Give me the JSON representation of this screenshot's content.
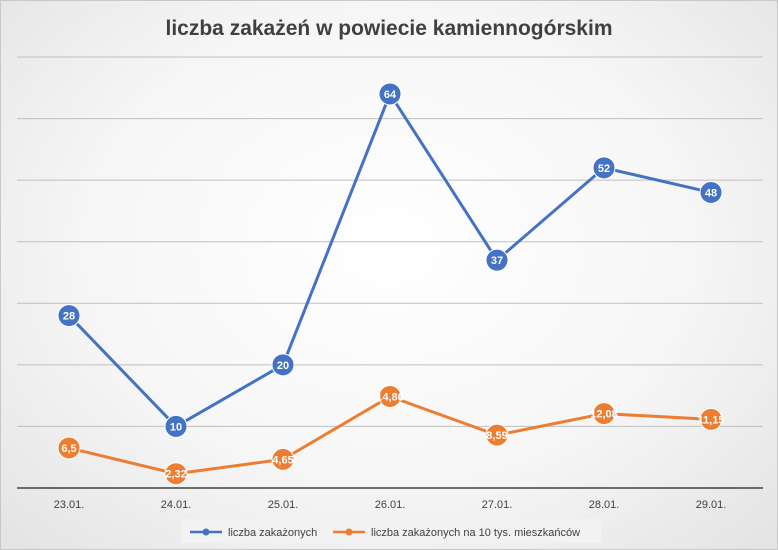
{
  "chart_data": {
    "type": "line",
    "title": "liczba zakażeń w powiecie kamiennogórskim",
    "categories": [
      "23.01.",
      "24.01.",
      "25.01.",
      "26.01.",
      "27.01.",
      "28.01.",
      "29.01."
    ],
    "ylim": [
      0,
      70
    ],
    "y_gridline_step": 10,
    "y_tick_labels_visible": false,
    "grid": true,
    "legend_position": "bottom",
    "series": [
      {
        "name": "liczba zakażonych",
        "color": "#4472C4",
        "values": [
          28,
          10,
          20,
          64,
          37,
          52,
          48
        ],
        "labels": [
          "28",
          "10",
          "20",
          "64",
          "37",
          "52",
          "48"
        ]
      },
      {
        "name": "liczba zakażonych na 10 tys. mieszkańców",
        "color": "#ED7D31",
        "values": [
          6.5,
          2.32,
          4.65,
          14.86,
          8.59,
          12.08,
          11.15
        ],
        "labels": [
          "6,5",
          "2,32",
          "4,65",
          "14,86",
          "8,59",
          "12,08",
          "11,15"
        ]
      }
    ]
  }
}
